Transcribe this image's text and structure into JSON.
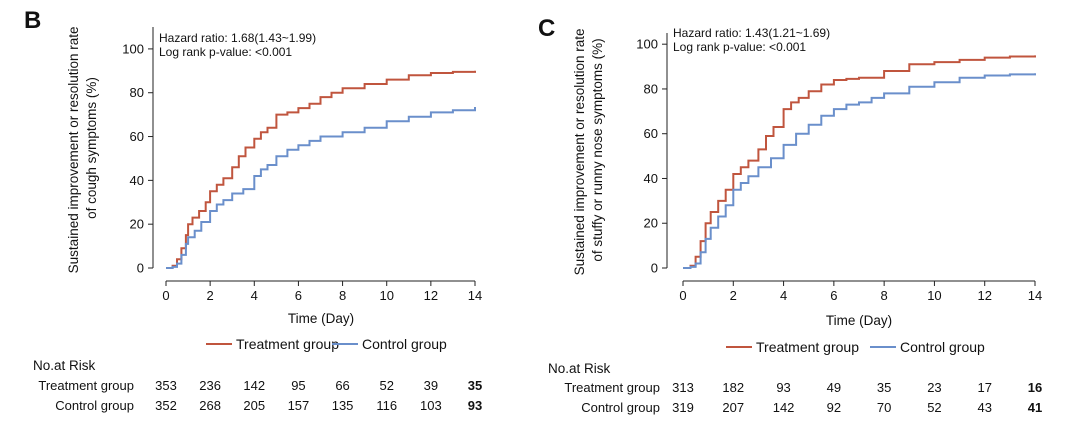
{
  "chart_data": [
    {
      "panel": "B",
      "type": "line",
      "ylabel_lines": [
        "Sustained improvement or resolution rate",
        "of cough symptoms (%)"
      ],
      "xlabel": "Time (Day)",
      "xlim": [
        0,
        14
      ],
      "ylim": [
        0,
        110
      ],
      "xticks": [
        0,
        2,
        4,
        6,
        8,
        10,
        12,
        14
      ],
      "yticks": [
        0,
        20,
        40,
        60,
        80,
        100
      ],
      "grid": false,
      "legend_position": "bottom",
      "annotations": [
        "Hazard ratio: 1.68(1.43~1.99)",
        "Log rank p-value: <0.001"
      ],
      "series": [
        {
          "name": "Treatment group",
          "color": "#c0553e",
          "x": [
            0,
            0.3,
            0.5,
            0.7,
            0.9,
            1.0,
            1.2,
            1.5,
            1.8,
            2.0,
            2.3,
            2.6,
            3.0,
            3.3,
            3.6,
            4.0,
            4.3,
            4.6,
            5.0,
            5.5,
            6.0,
            6.5,
            7.0,
            7.5,
            8.0,
            9.0,
            10.0,
            11.0,
            12.0,
            13.0,
            14.0
          ],
          "y": [
            0,
            1,
            4,
            9,
            15,
            20,
            23,
            26,
            30,
            35,
            38,
            41,
            46,
            51,
            55,
            59,
            62,
            64,
            70,
            71,
            73,
            75,
            78,
            80,
            82,
            84,
            86,
            88,
            89,
            89.5,
            90
          ]
        },
        {
          "name": "Control group",
          "color": "#6a8fcb",
          "x": [
            0,
            0.3,
            0.5,
            0.7,
            0.9,
            1.0,
            1.3,
            1.6,
            2.0,
            2.3,
            2.6,
            3.0,
            3.5,
            4.0,
            4.3,
            4.6,
            5.0,
            5.5,
            6.0,
            6.5,
            7.0,
            8.0,
            9.0,
            10.0,
            11.0,
            12.0,
            13.0,
            14.0
          ],
          "y": [
            0,
            0.5,
            2,
            6,
            11,
            14,
            17,
            21,
            26,
            29,
            31,
            34,
            36,
            42,
            45,
            47,
            51,
            54,
            56,
            58,
            60,
            62,
            64,
            67,
            69,
            71,
            72,
            73.5
          ]
        }
      ],
      "risk_table": {
        "title": "No.at Risk",
        "rows": [
          {
            "label": "Treatment group",
            "values": [
              "353",
              "236",
              "142",
              "95",
              "66",
              "52",
              "39",
              "35"
            ]
          },
          {
            "label": "Control group",
            "values": [
              "352",
              "268",
              "205",
              "157",
              "135",
              "116",
              "103",
              "93"
            ]
          }
        ]
      }
    },
    {
      "panel": "C",
      "type": "line",
      "ylabel_lines": [
        "Sustained improvement or resolution rate",
        "of stuffy or runny nose symptoms (%)"
      ],
      "xlabel": "Time (Day)",
      "xlim": [
        0,
        14
      ],
      "ylim": [
        0,
        105
      ],
      "xticks": [
        0,
        2,
        4,
        6,
        8,
        10,
        12,
        14
      ],
      "yticks": [
        0,
        20,
        40,
        60,
        80,
        100
      ],
      "grid": false,
      "legend_position": "bottom",
      "annotations": [
        "Hazard ratio: 1.43(1.21~1.69)",
        "Log rank p-value: <0.001"
      ],
      "series": [
        {
          "name": "Treatment group",
          "color": "#c0553e",
          "x": [
            0,
            0.3,
            0.5,
            0.7,
            0.9,
            1.1,
            1.4,
            1.7,
            2.0,
            2.3,
            2.6,
            3.0,
            3.3,
            3.6,
            4.0,
            4.3,
            4.6,
            5.0,
            5.5,
            6.0,
            6.5,
            7.0,
            8.0,
            9.0,
            10.0,
            11.0,
            12.0,
            13.0,
            14.0
          ],
          "y": [
            0,
            1,
            5,
            12,
            20,
            25,
            30,
            35,
            42,
            45,
            48,
            53,
            59,
            63,
            71,
            74,
            76,
            79,
            82,
            84,
            84.5,
            85,
            88,
            91,
            92,
            93,
            94,
            94.5,
            95
          ]
        },
        {
          "name": "Control group",
          "color": "#6a8fcb",
          "x": [
            0,
            0.3,
            0.5,
            0.7,
            0.9,
            1.1,
            1.4,
            1.7,
            2.0,
            2.3,
            2.6,
            3.0,
            3.5,
            4.0,
            4.5,
            5.0,
            5.5,
            6.0,
            6.5,
            7.0,
            7.5,
            8.0,
            9.0,
            10.0,
            11.0,
            12.0,
            13.0,
            14.0
          ],
          "y": [
            0,
            0.5,
            2,
            7,
            13,
            18,
            23,
            28,
            35,
            38,
            41,
            45,
            49,
            55,
            60,
            64,
            68,
            71,
            73,
            74,
            76,
            78,
            81,
            83,
            85,
            86,
            86.5,
            87
          ]
        }
      ],
      "risk_table": {
        "title": "No.at Risk",
        "rows": [
          {
            "label": "Treatment group",
            "values": [
              "313",
              "182",
              "93",
              "49",
              "35",
              "23",
              "17",
              "16"
            ]
          },
          {
            "label": "Control group",
            "values": [
              "319",
              "207",
              "142",
              "92",
              "70",
              "52",
              "43",
              "41"
            ]
          }
        ]
      }
    }
  ]
}
